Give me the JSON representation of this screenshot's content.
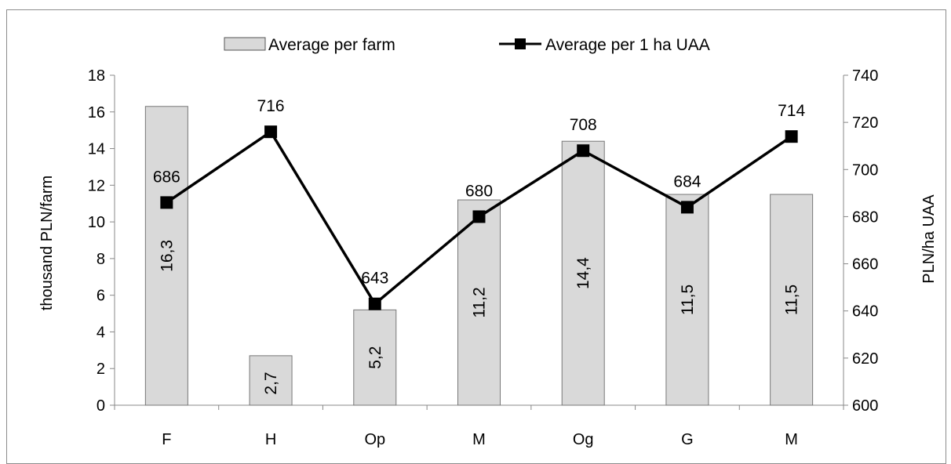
{
  "chart_data": {
    "type": "bar",
    "categories": [
      "F",
      "H",
      "Op",
      "M",
      "Og",
      "G",
      "M"
    ],
    "series": [
      {
        "name": "Average per farm",
        "type": "bar",
        "axis": "left",
        "values": [
          16.3,
          2.7,
          5.2,
          11.2,
          14.4,
          11.5,
          11.5
        ],
        "labels": [
          "16,3",
          "2,7",
          "5,2",
          "11,2",
          "14,4",
          "11,5",
          "11,5"
        ],
        "color": "#d9d9d9"
      },
      {
        "name": "Average per 1 ha UAA",
        "type": "line",
        "axis": "right",
        "values": [
          686,
          716,
          643,
          680,
          708,
          684,
          714
        ],
        "labels": [
          "686",
          "716",
          "643",
          "680",
          "708",
          "684",
          "714"
        ],
        "color": "#000000"
      }
    ],
    "ylabel": "thousand PLN/farm",
    "y2label": "PLN/ha UAA",
    "ylim": [
      0,
      18
    ],
    "y2lim": [
      600,
      740
    ],
    "yticks": [
      "0",
      "2",
      "4",
      "6",
      "8",
      "10",
      "12",
      "14",
      "16",
      "18"
    ],
    "y2ticks": [
      "600",
      "620",
      "640",
      "660",
      "680",
      "700",
      "720",
      "740"
    ],
    "grid": false,
    "legend": "top"
  }
}
